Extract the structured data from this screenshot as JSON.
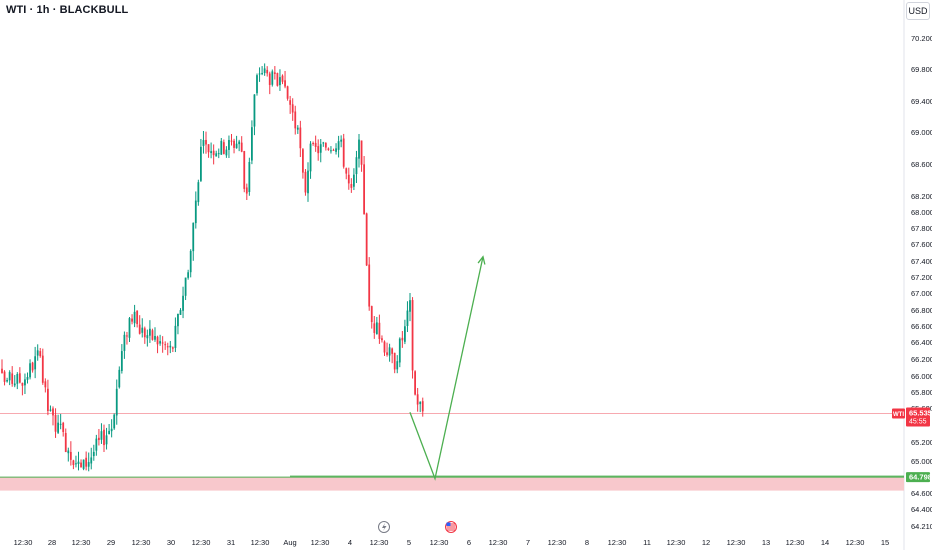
{
  "header": {
    "symbol_title": "WTI · 1h · BLACKBULL",
    "currency": "USD"
  },
  "price_tag": {
    "symbol": "WTI",
    "price": "65.535",
    "countdown": "45:55",
    "color": "#f23645"
  },
  "support_tag": {
    "price": "64.798",
    "color": "#4caf50"
  },
  "colors": {
    "up": "#089981",
    "down": "#f23645",
    "zone_fill": "#f8c8cc",
    "projection": "#4caf50"
  },
  "time_icons": [
    "lightning-icon",
    "us-flag-icon"
  ],
  "chart_data": {
    "type": "candlestick",
    "title": "",
    "xlabel": "",
    "ylabel": "",
    "ylim": [
      64.2,
      70.4
    ],
    "x_ticks": [
      "12:30",
      "28",
      "12:30",
      "29",
      "12:30",
      "30",
      "12:30",
      "31",
      "12:30",
      "Aug",
      "12:30",
      "4",
      "12:30",
      "5",
      "12:30",
      "6",
      "12:30",
      "7",
      "12:30",
      "8",
      "12:30",
      "11",
      "12:30",
      "12",
      "12:30",
      "13",
      "12:30",
      "14",
      "12:30",
      "15"
    ],
    "y_ticks": [
      "70.200",
      "69.800",
      "69.400",
      "69.000",
      "68.600",
      "68.200",
      "68.000",
      "67.800",
      "67.600",
      "67.400",
      "67.200",
      "67.000",
      "66.800",
      "66.600",
      "66.400",
      "66.200",
      "66.000",
      "65.800",
      "65.600",
      "65.200",
      "65.000",
      "64.600",
      "64.400",
      "64.210"
    ],
    "current_price": 65.535,
    "support_zone": {
      "top": 64.798,
      "bottom": 64.63
    },
    "projection": [
      {
        "t": "4 12:30",
        "price": 65.55
      },
      {
        "t": "5",
        "price": 64.78
      },
      {
        "t": "6",
        "price": 67.45
      }
    ],
    "close_path": [
      {
        "x": "12:30",
        "y": 65.95
      },
      {
        "x": "27 18:00",
        "y": 66.25
      },
      {
        "x": "27 22:00",
        "y": 65.55
      },
      {
        "x": "28",
        "y": 64.9
      },
      {
        "x": "28 12:30",
        "y": 65.4
      },
      {
        "x": "28 16:00",
        "y": 66.2
      },
      {
        "x": "28 20:00",
        "y": 66.75
      },
      {
        "x": "29",
        "y": 66.55
      },
      {
        "x": "29 12:30",
        "y": 66.3
      },
      {
        "x": "29 16:00",
        "y": 66.85
      },
      {
        "x": "29 20:00",
        "y": 67.5
      },
      {
        "x": "30",
        "y": 68.8
      },
      {
        "x": "30 08:00",
        "y": 68.8
      },
      {
        "x": "30 16:00",
        "y": 68.9
      },
      {
        "x": "30 18:00",
        "y": 68.1
      },
      {
        "x": "30 22:00",
        "y": 69.6
      },
      {
        "x": "31",
        "y": 69.8
      },
      {
        "x": "31 08:00",
        "y": 69.6
      },
      {
        "x": "31 12:30",
        "y": 69.35
      },
      {
        "x": "31 16:00",
        "y": 68.85
      },
      {
        "x": "31 18:00",
        "y": 68.2
      },
      {
        "x": "31 20:00",
        "y": 68.75
      },
      {
        "x": "Aug",
        "y": 68.8
      },
      {
        "x": "Aug 08:00",
        "y": 68.9
      },
      {
        "x": "Aug 12:30",
        "y": 68.2
      },
      {
        "x": "Aug 16:00",
        "y": 68.85
      },
      {
        "x": "Aug 18:00",
        "y": 67.95
      },
      {
        "x": "Aug 20:00",
        "y": 66.7
      },
      {
        "x": "4",
        "y": 66.5
      },
      {
        "x": "4 06:00",
        "y": 66.15
      },
      {
        "x": "4 10:00",
        "y": 66.5
      },
      {
        "x": "4 12:30",
        "y": 66.85
      },
      {
        "x": "4 14:00",
        "y": 65.8
      },
      {
        "x": "4 18:00",
        "y": 65.55
      }
    ]
  }
}
